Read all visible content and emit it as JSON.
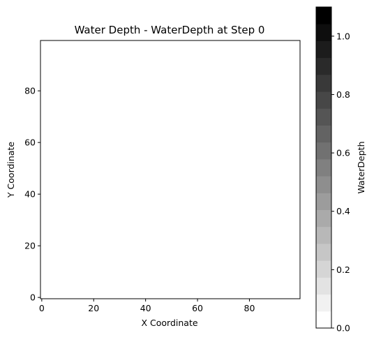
{
  "chart_data": {
    "type": "heatmap",
    "title": "Water Depth - WaterDepth at Step 0",
    "xlabel": "X Coordinate",
    "ylabel": "Y Coordinate",
    "xlim": [
      -0.5,
      99.5
    ],
    "ylim": [
      -0.5,
      99.5
    ],
    "x_ticks": [
      0,
      20,
      40,
      60,
      80
    ],
    "y_ticks": [
      0,
      20,
      40,
      60,
      80
    ],
    "x_tick_labels": [
      "0",
      "20",
      "40",
      "60",
      "80"
    ],
    "y_tick_labels": [
      "0",
      "20",
      "40",
      "60",
      "80"
    ],
    "grid": false,
    "field_value": 0.0,
    "colorbar": {
      "label": "WaterDepth",
      "vmin": 0.0,
      "vmax": 1.1,
      "levels": 19,
      "ticks": [
        0.0,
        0.2,
        0.4,
        0.6,
        0.8,
        1.0
      ],
      "tick_labels": [
        "0.0",
        "0.2",
        "0.4",
        "0.6",
        "0.8",
        "1.0"
      ],
      "colormap": "gray_r"
    }
  }
}
